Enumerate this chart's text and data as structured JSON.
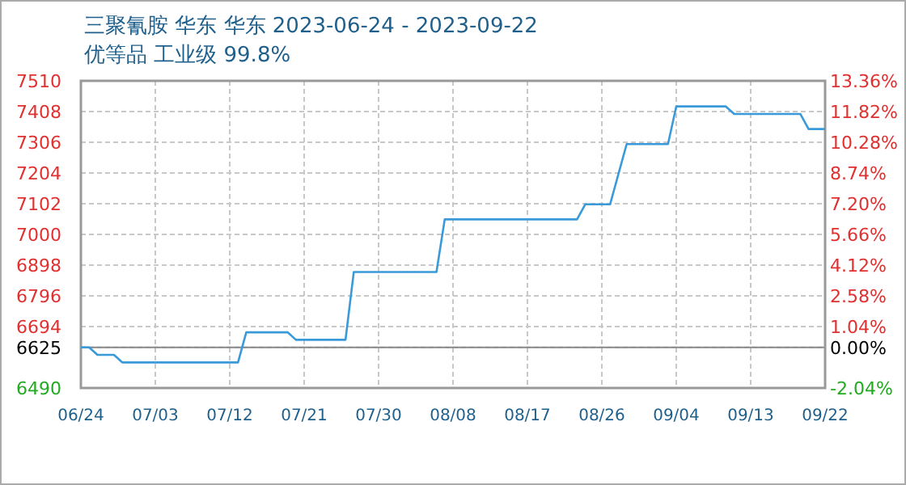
{
  "chart_data": {
    "type": "line",
    "title": "三聚氰胺 华东 华东 2023-06-24 - 2023-09-22",
    "subtitle": "优等品 工业级 99.8%",
    "x": [
      "2023-06-24",
      "2023-06-25",
      "2023-06-26",
      "2023-06-28",
      "2023-06-29",
      "2023-07-13",
      "2023-07-14",
      "2023-07-19",
      "2023-07-20",
      "2023-07-26",
      "2023-07-27",
      "2023-08-06",
      "2023-08-07",
      "2023-08-23",
      "2023-08-24",
      "2023-08-27",
      "2023-08-29",
      "2023-09-03",
      "2023-09-04",
      "2023-09-10",
      "2023-09-11",
      "2023-09-19",
      "2023-09-20",
      "2023-09-22"
    ],
    "series": [
      {
        "color": "#3a9ad9",
        "values": [
          6625,
          6625,
          6600,
          6600,
          6575,
          6575,
          6675,
          6675,
          6650,
          6650,
          6875,
          6875,
          7050,
          7050,
          7100,
          7100,
          7300,
          7300,
          7425,
          7425,
          7400,
          7400,
          7350,
          7350
        ]
      }
    ],
    "xlim": [
      "2023-06-24",
      "2023-09-22"
    ],
    "xticks": [
      {
        "value": "2023-06-24",
        "label": "06/24"
      },
      {
        "value": "2023-07-03",
        "label": "07/03"
      },
      {
        "value": "2023-07-12",
        "label": "07/12"
      },
      {
        "value": "2023-07-21",
        "label": "07/21"
      },
      {
        "value": "2023-07-30",
        "label": "07/30"
      },
      {
        "value": "2023-08-08",
        "label": "08/08"
      },
      {
        "value": "2023-08-17",
        "label": "08/17"
      },
      {
        "value": "2023-08-26",
        "label": "08/26"
      },
      {
        "value": "2023-09-04",
        "label": "09/04"
      },
      {
        "value": "2023-09-13",
        "label": "09/13"
      },
      {
        "value": "2023-09-22",
        "label": "09/22"
      }
    ],
    "ylim": [
      6490,
      7510
    ],
    "yticks": [
      6490,
      6625,
      6694,
      6796,
      6898,
      7000,
      7102,
      7204,
      7306,
      7408,
      7510
    ],
    "y2lim": [
      -2.04,
      13.36
    ],
    "y2ticks": [
      {
        "value": -2.04,
        "label": "-2.04%"
      },
      {
        "value": 0,
        "label": "0.00%"
      },
      {
        "value": 1.04,
        "label": "1.04%"
      },
      {
        "value": 2.58,
        "label": "2.58%"
      },
      {
        "value": 4.12,
        "label": "4.12%"
      },
      {
        "value": 5.66,
        "label": "5.66%"
      },
      {
        "value": 7.2,
        "label": "7.20%"
      },
      {
        "value": 8.74,
        "label": "8.74%"
      },
      {
        "value": 10.28,
        "label": "10.28%"
      },
      {
        "value": 11.82,
        "label": "11.82%"
      },
      {
        "value": 13.36,
        "label": "13.36%"
      }
    ],
    "ref_lines": [
      {
        "axis": "y",
        "value": 6625,
        "color": "#888888",
        "line_style": "solid"
      }
    ],
    "grid": true,
    "marker": "none",
    "line_style": "solid"
  }
}
